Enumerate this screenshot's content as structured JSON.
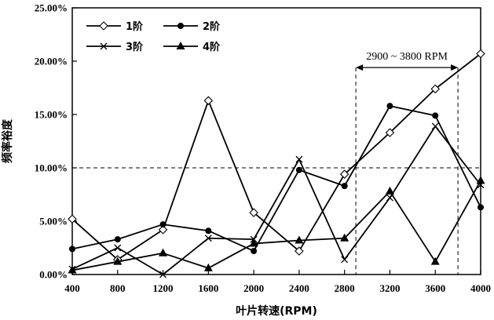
{
  "chart_data": {
    "type": "line",
    "title": "",
    "xlabel": "叶片转速(RPM)",
    "ylabel": "频率裕度",
    "categories": [
      "400",
      "800",
      "1200",
      "1600",
      "2000",
      "2400",
      "2800",
      "3200",
      "3600",
      "4000"
    ],
    "x": [
      400,
      800,
      1200,
      1600,
      2000,
      2400,
      2800,
      3200,
      3600,
      4000
    ],
    "xlim": [
      400,
      4000
    ],
    "ylim": [
      0,
      25
    ],
    "yticks": [
      "0.00%",
      "5.00%",
      "10.00%",
      "15.00%",
      "20.00%",
      "25.00%"
    ],
    "ytick_values": [
      0,
      5,
      10,
      15,
      20,
      25
    ],
    "series": [
      {
        "name": "1阶",
        "marker": "diamond-open",
        "values": [
          5.2,
          1.4,
          4.2,
          16.3,
          5.8,
          2.2,
          9.4,
          13.3,
          17.4,
          20.7
        ]
      },
      {
        "name": "2阶",
        "marker": "circle-filled",
        "values": [
          2.4,
          3.3,
          4.7,
          4.1,
          2.2,
          9.8,
          8.3,
          15.8,
          14.9,
          6.3
        ]
      },
      {
        "name": "3阶",
        "marker": "x",
        "values": [
          0.5,
          2.5,
          0.0,
          3.4,
          3.3,
          10.8,
          1.4,
          7.2,
          13.9,
          8.4
        ]
      },
      {
        "name": "4阶",
        "marker": "triangle-filled",
        "values": [
          0.4,
          1.2,
          2.0,
          0.6,
          2.9,
          3.2,
          3.4,
          7.8,
          1.2,
          8.8
        ]
      }
    ],
    "reference_line": {
      "y": 10.0,
      "style": "dashed"
    },
    "annotation": {
      "text": "2900 ~ 3800 RPM",
      "x_start": 2900,
      "x_end": 3800,
      "y": 19.4,
      "style": "double-arrow with dashed verticals"
    },
    "legend_position": "top-left",
    "grid": false
  }
}
